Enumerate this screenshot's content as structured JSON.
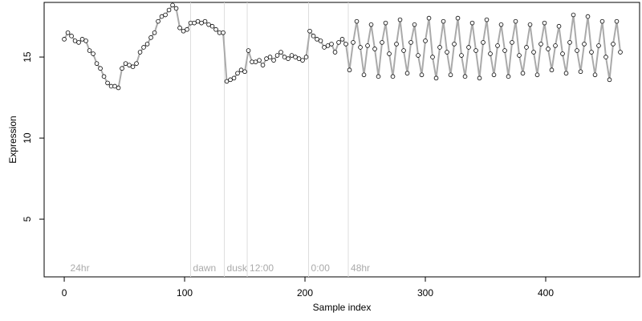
{
  "chart_data": {
    "type": "scatter",
    "x_label": "Sample index",
    "y_label": "Expression",
    "xlim": [
      -16.7,
      478
    ],
    "ylim": [
      1.44,
      18.37
    ],
    "xticks": [
      0,
      100,
      200,
      300,
      400
    ],
    "yticks": [
      5,
      10,
      15
    ],
    "vlines": [
      105,
      133,
      152,
      203,
      236
    ],
    "annotations": [
      {
        "x": 3,
        "label": "24hr"
      },
      {
        "x": 105,
        "label": "dawn"
      },
      {
        "x": 133,
        "label": "dusk"
      },
      {
        "x": 152,
        "label": "12:00"
      },
      {
        "x": 203,
        "label": "0:00"
      },
      {
        "x": 236,
        "label": "48hr"
      }
    ],
    "line_color": "#aaaaaa",
    "point_fill": "#ffffff",
    "x": [
      0,
      3,
      6,
      9,
      12,
      15,
      18,
      21,
      24,
      27,
      30,
      33,
      36,
      39,
      42,
      45,
      48,
      51,
      54,
      57,
      60,
      63,
      66,
      69,
      72,
      75,
      78,
      81,
      84,
      87,
      90,
      93,
      96,
      99,
      102,
      105,
      108,
      111,
      114,
      117,
      120,
      123,
      126,
      129,
      132,
      135,
      138,
      141,
      144,
      147,
      150,
      153,
      156,
      159,
      162,
      165,
      168,
      171,
      174,
      177,
      180,
      183,
      186,
      189,
      192,
      195,
      198,
      201,
      204,
      207,
      210,
      213,
      216,
      219,
      222,
      225,
      228,
      231,
      234,
      237,
      240,
      243,
      246,
      249,
      252,
      255,
      258,
      261,
      264,
      267,
      270,
      273,
      276,
      279,
      282,
      285,
      288,
      291,
      294,
      297,
      300,
      303,
      306,
      309,
      312,
      315,
      318,
      321,
      324,
      327,
      330,
      333,
      336,
      339,
      342,
      345,
      348,
      351,
      354,
      357,
      360,
      363,
      366,
      369,
      372,
      375,
      378,
      381,
      384,
      387,
      390,
      393,
      396,
      399,
      402,
      405,
      408,
      411,
      414,
      417,
      420,
      423,
      426,
      429,
      432,
      435,
      438,
      441,
      444,
      447,
      450,
      453,
      456,
      459,
      462
    ],
    "values": [
      16.1,
      16.5,
      16.3,
      16.0,
      15.9,
      16.1,
      16.0,
      15.4,
      15.2,
      14.6,
      14.3,
      13.8,
      13.4,
      13.2,
      13.2,
      13.1,
      14.3,
      14.6,
      14.5,
      14.4,
      14.6,
      15.3,
      15.6,
      15.8,
      16.2,
      16.5,
      17.2,
      17.5,
      17.6,
      17.9,
      18.2,
      18.0,
      16.8,
      16.6,
      16.7,
      17.1,
      17.1,
      17.2,
      17.1,
      17.2,
      17.0,
      16.9,
      16.7,
      16.5,
      16.5,
      13.5,
      13.6,
      13.7,
      14.0,
      14.2,
      14.1,
      15.4,
      14.7,
      14.7,
      14.8,
      14.5,
      14.9,
      15.0,
      14.8,
      15.1,
      15.3,
      15.0,
      14.9,
      15.1,
      15.0,
      14.9,
      14.8,
      15.0,
      16.6,
      16.3,
      16.1,
      16.0,
      15.6,
      15.7,
      15.8,
      15.3,
      15.9,
      16.1,
      15.8,
      14.2,
      15.9,
      17.2,
      15.6,
      13.9,
      15.7,
      17.0,
      15.5,
      13.8,
      15.9,
      17.1,
      15.2,
      13.8,
      15.8,
      17.3,
      15.4,
      14.0,
      15.9,
      17.0,
      15.1,
      13.9,
      16.0,
      17.4,
      15.0,
      13.7,
      15.6,
      17.2,
      15.3,
      13.9,
      15.8,
      17.4,
      15.1,
      13.8,
      15.6,
      17.1,
      15.4,
      13.7,
      15.9,
      17.3,
      15.2,
      13.9,
      15.7,
      17.0,
      15.4,
      13.8,
      15.9,
      17.2,
      15.1,
      14.0,
      15.6,
      17.0,
      15.3,
      13.9,
      15.8,
      17.1,
      15.5,
      14.2,
      15.7,
      16.9,
      15.2,
      14.0,
      15.9,
      17.6,
      15.4,
      14.1,
      15.8,
      17.5,
      15.3,
      13.9,
      15.7,
      17.2,
      15.0,
      13.6,
      15.8,
      17.2,
      15.3
    ]
  }
}
